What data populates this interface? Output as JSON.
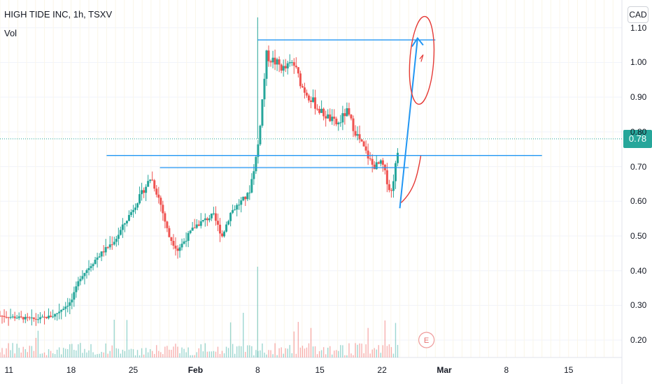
{
  "header": {
    "title": "HIGH TIDE INC, 1h, TSXV",
    "indicator": "Vol"
  },
  "currency_button": "CAD",
  "last_price_label": "0.78",
  "colors": {
    "up": "#26a69a",
    "down": "#ef5350",
    "drawing_blue": "#2196f3",
    "drawing_red": "#e53935",
    "grid": "#f0f3fa",
    "last_price": "#26a69a"
  },
  "chart_data": {
    "type": "candlestick",
    "symbol": "HIGH TIDE INC",
    "interval": "1h",
    "exchange": "TSXV",
    "currency": "CAD",
    "y_axis": {
      "ticks": [
        1.1,
        1.0,
        0.9,
        0.8,
        0.7,
        0.6,
        0.5,
        0.4,
        0.3,
        0.2
      ],
      "labels": [
        "1.10",
        "1.00",
        "0.90",
        "0.80",
        "0.70",
        "0.60",
        "0.50",
        "0.40",
        "0.30",
        "0.20"
      ],
      "range": [
        0.15,
        1.18
      ]
    },
    "x_axis": {
      "labels": [
        "11",
        "18",
        "25",
        "Feb",
        "8",
        "15",
        "22",
        "Mar",
        "8",
        "15"
      ],
      "bold_labels": [
        "Feb",
        "Mar"
      ],
      "date_range": [
        "2021-01-10",
        "2021-03-21"
      ]
    },
    "last_price": 0.78,
    "price_path": [
      {
        "date": "2021-01-10",
        "price": 0.27
      },
      {
        "date": "2021-01-14",
        "price": 0.26
      },
      {
        "date": "2021-01-16",
        "price": 0.27
      },
      {
        "date": "2021-01-18",
        "price": 0.31
      },
      {
        "date": "2021-01-19",
        "price": 0.38
      },
      {
        "date": "2021-01-21",
        "price": 0.44
      },
      {
        "date": "2021-01-23",
        "price": 0.49
      },
      {
        "date": "2021-01-25",
        "price": 0.58
      },
      {
        "date": "2021-01-27",
        "price": 0.67
      },
      {
        "date": "2021-01-28",
        "price": 0.6
      },
      {
        "date": "2021-01-29",
        "price": 0.5
      },
      {
        "date": "2021-01-30",
        "price": 0.46
      },
      {
        "date": "2021-02-01",
        "price": 0.53
      },
      {
        "date": "2021-02-03",
        "price": 0.56
      },
      {
        "date": "2021-02-04",
        "price": 0.5
      },
      {
        "date": "2021-02-05",
        "price": 0.57
      },
      {
        "date": "2021-02-07",
        "price": 0.62
      },
      {
        "date": "2021-02-08",
        "price": 0.75
      },
      {
        "date": "2021-02-09",
        "price": 1.02
      },
      {
        "date": "2021-02-11",
        "price": 0.98
      },
      {
        "date": "2021-02-12",
        "price": 1.0
      },
      {
        "date": "2021-02-13",
        "price": 0.93
      },
      {
        "date": "2021-02-15",
        "price": 0.86
      },
      {
        "date": "2021-02-17",
        "price": 0.82
      },
      {
        "date": "2021-02-18",
        "price": 0.86
      },
      {
        "date": "2021-02-19",
        "price": 0.8
      },
      {
        "date": "2021-02-20",
        "price": 0.75
      },
      {
        "date": "2021-02-21",
        "price": 0.7
      },
      {
        "date": "2021-02-22",
        "price": 0.71
      },
      {
        "date": "2021-02-23",
        "price": 0.62
      },
      {
        "date": "2021-02-24",
        "price": 0.78
      }
    ],
    "volume": {
      "color_rule": "up/down",
      "baseline_price_level": 0.19
    },
    "drawings": {
      "horizontal_lines": [
        {
          "price": 1.065,
          "from": "2021-02-08",
          "to": "2021-02-28"
        },
        {
          "price": 0.732,
          "from": "2021-01-22",
          "to": "2021-03-12"
        },
        {
          "price": 0.697,
          "from": "2021-01-28",
          "to": "2021-02-25"
        }
      ],
      "arrow": {
        "from": {
          "date": "2021-02-24",
          "price": 0.58
        },
        "to": {
          "date": "2021-02-26",
          "price": 1.07
        }
      },
      "circle_center": {
        "date": "2021-02-26",
        "price": 0.99
      }
    },
    "event_marker": {
      "label": "E",
      "date": "2021-02-27"
    }
  }
}
